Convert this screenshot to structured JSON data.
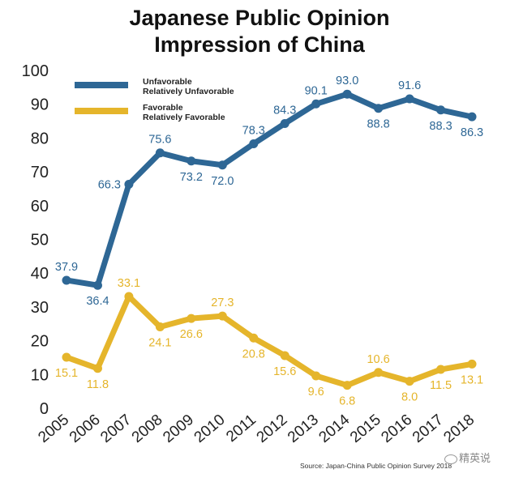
{
  "chart_data": {
    "type": "line",
    "title_lines": [
      "Japanese Public Opinion",
      "Impression of China"
    ],
    "categories": [
      "2005",
      "2006",
      "2007",
      "2008",
      "2009",
      "2010",
      "2011",
      "2012",
      "2013",
      "2014",
      "2015",
      "2016",
      "2017",
      "2018"
    ],
    "ylim": [
      0,
      100
    ],
    "yticks": [
      0,
      10,
      20,
      30,
      40,
      50,
      60,
      70,
      80,
      90,
      100
    ],
    "grid": false,
    "legend_position": "top-left",
    "series": [
      {
        "name": "Unfavorable",
        "name_line2": "Relatively Unfavorable",
        "color": "#2E6795",
        "values": [
          37.9,
          36.4,
          66.3,
          75.6,
          73.2,
          72.0,
          78.3,
          84.3,
          90.1,
          93.0,
          88.8,
          91.6,
          88.3,
          86.3
        ],
        "labels": [
          "37.9",
          "36.4",
          "66.3",
          "75.6",
          "73.2",
          "72.0",
          "78.3",
          "84.3",
          "90.1",
          "93.0",
          "88.8",
          "91.6",
          "88.3",
          "86.3"
        ],
        "label_sides": [
          "above",
          "below",
          "left",
          "above",
          "below",
          "below",
          "above",
          "above",
          "above",
          "above",
          "below",
          "above",
          "below",
          "below"
        ]
      },
      {
        "name": "Favorable",
        "name_line2": "Relatively Favorable",
        "color": "#E5B52B",
        "values": [
          15.1,
          11.8,
          33.1,
          24.1,
          26.6,
          27.3,
          20.8,
          15.6,
          9.6,
          6.8,
          10.6,
          8.0,
          11.5,
          13.1
        ],
        "labels": [
          "15.1",
          "11.8",
          "33.1",
          "24.1",
          "26.6",
          "27.3",
          "20.8",
          "15.6",
          "9.6",
          "6.8",
          "10.6",
          "8.0",
          "11.5",
          "13.1"
        ],
        "label_sides": [
          "below",
          "below",
          "above",
          "below",
          "below",
          "above",
          "below",
          "below",
          "below",
          "below",
          "above",
          "below",
          "below",
          "below"
        ]
      }
    ],
    "source": "Source: Japan-China Public Opinion Survey 2018"
  },
  "watermark": {
    "text": "精英说"
  }
}
